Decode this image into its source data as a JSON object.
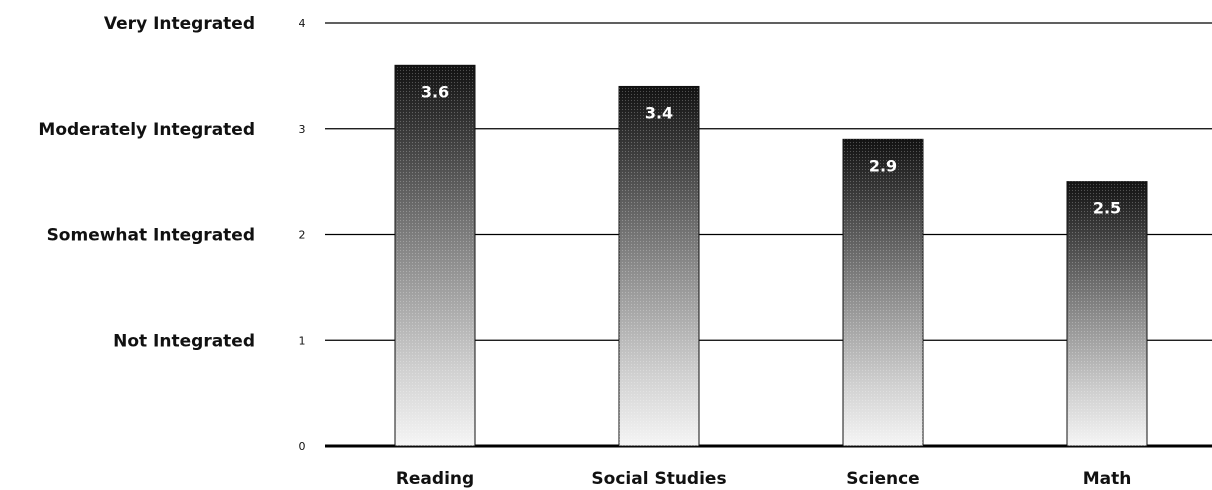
{
  "chart_data": {
    "type": "bar",
    "categories": [
      "Reading",
      "Social Studies",
      "Science",
      "Math"
    ],
    "values": [
      3.6,
      3.4,
      2.9,
      2.5
    ],
    "value_labels": [
      "3.6",
      "3.4",
      "2.9",
      "2.5"
    ],
    "y_ticks": [
      "0",
      "1",
      "2",
      "3",
      "4"
    ],
    "y_levels": [
      {
        "value": 1,
        "label": "Not Integrated"
      },
      {
        "value": 2,
        "label": "Somewhat Integrated"
      },
      {
        "value": 3,
        "label": "Moderately Integrated"
      },
      {
        "value": 4,
        "label": "Very Integrated"
      }
    ],
    "ylim": [
      0,
      4
    ],
    "grid": true,
    "title": "",
    "xlabel": "",
    "ylabel": "",
    "bar_fill": "vertical gradient dark top to light bottom",
    "colors": {
      "bar_top": "#111111",
      "bar_bottom": "#f5f5f5",
      "gridline": "#000000"
    }
  }
}
